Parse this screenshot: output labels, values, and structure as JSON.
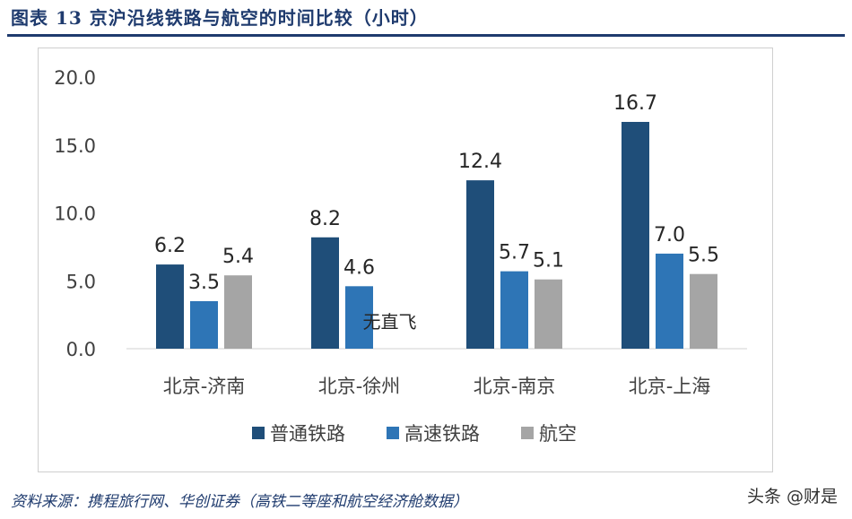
{
  "title": "图表 13 京沪沿线铁路与航空的时间比较（小时）",
  "source": "资料来源：携程旅行网、华创证券（高铁二等座和航空经济舱数据）",
  "watermark": "头条 @财是",
  "colors": {
    "title": "#1f3b6e",
    "axis_text": "#404040"
  },
  "chart_data": {
    "type": "bar",
    "categories": [
      "北京-济南",
      "北京-徐州",
      "北京-南京",
      "北京-上海"
    ],
    "series": [
      {
        "name": "普通铁路",
        "color": "#1f4e79",
        "values": [
          6.2,
          8.2,
          12.4,
          16.7
        ],
        "labels": [
          "6.2",
          "8.2",
          "12.4",
          "16.7"
        ]
      },
      {
        "name": "高速铁路",
        "color": "#2e75b6",
        "values": [
          3.5,
          4.6,
          5.7,
          7.0
        ],
        "labels": [
          "3.5",
          "4.6",
          "5.7",
          "7.0"
        ]
      },
      {
        "name": "航空",
        "color": "#a5a5a5",
        "values": [
          5.4,
          null,
          5.1,
          5.5
        ],
        "labels": [
          "5.4",
          "",
          "5.1",
          "5.5"
        ]
      }
    ],
    "annotation": "无直飞",
    "ylim": [
      0,
      20
    ],
    "yticks": [
      "0.0",
      "5.0",
      "10.0",
      "15.0",
      "20.0"
    ],
    "grid": false,
    "legend": "bottom"
  }
}
